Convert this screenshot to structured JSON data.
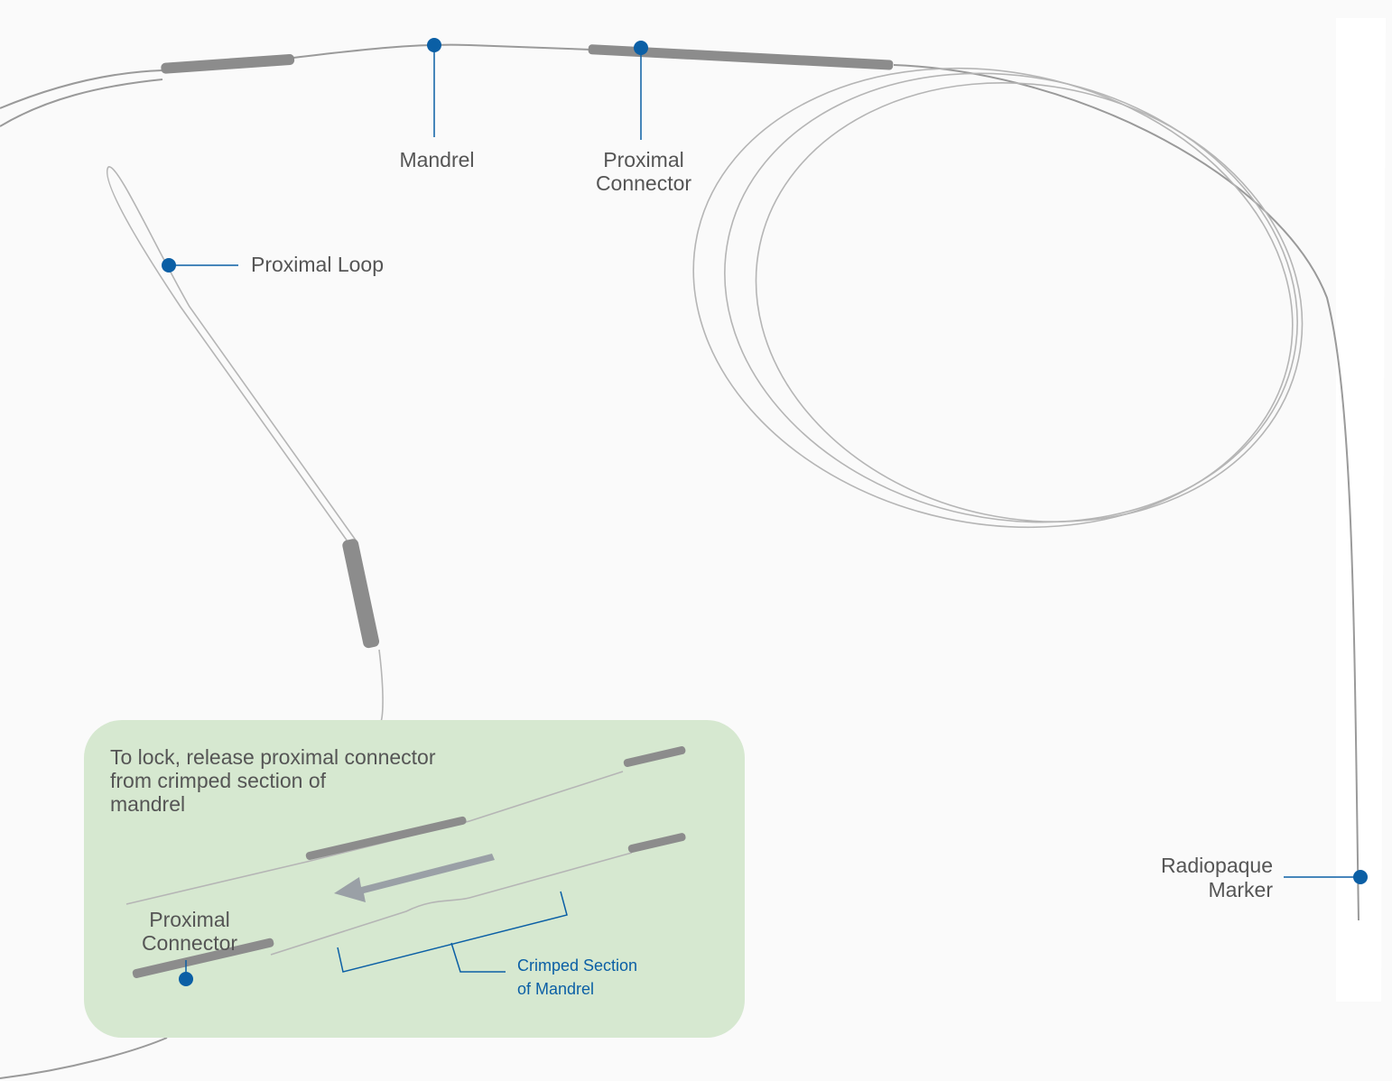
{
  "callouts": {
    "mandrel": {
      "lines": [
        "Mandrel"
      ]
    },
    "proximal_connector": {
      "lines": [
        "Proximal",
        "Connector"
      ]
    },
    "proximal_loop": {
      "lines": [
        "Proximal Loop"
      ]
    },
    "radiopaque_marker": {
      "lines": [
        "Radiopaque",
        "Marker"
      ]
    }
  },
  "inset": {
    "instruction": [
      "To lock, release proximal connector",
      "from crimped section of",
      "mandrel"
    ],
    "proximal_connector": [
      "Proximal",
      "Connector"
    ],
    "crimped_section": [
      "Crimped Section",
      "of Mandrel"
    ]
  }
}
